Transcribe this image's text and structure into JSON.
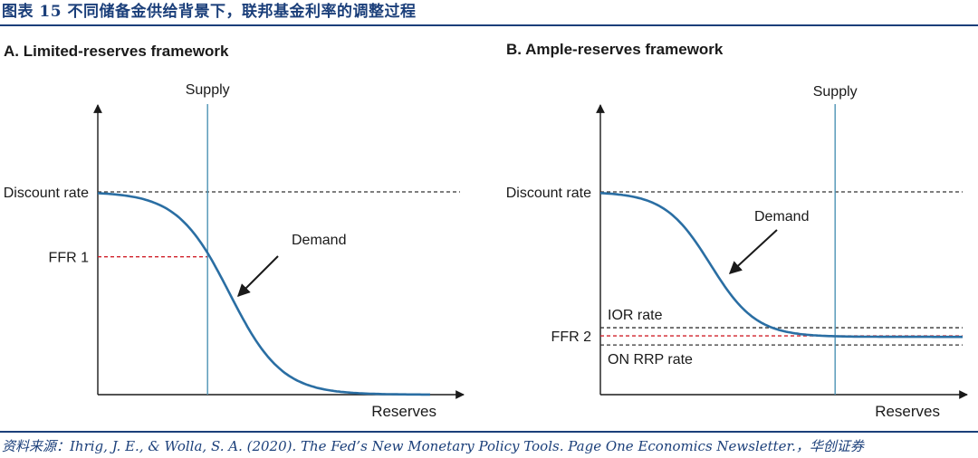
{
  "figure": {
    "title": "图表 15 不同储备金供给背景下，联邦基金利率的调整过程",
    "source": "资料来源：Ihrig, J. E., & Wolla, S. A. (2020). The Fed’s New Monetary Policy Tools. Page One Economics Newsletter.，华创证券",
    "rule_color": "#1b3f7a"
  },
  "chart_data": [
    {
      "type": "line",
      "title": "A. Limited-reserves framework",
      "xlabel": "Reserves",
      "ylabel": "",
      "supply_label": "Supply",
      "demand_label": "Demand",
      "rate_lines": [
        {
          "label": "Discount rate",
          "value": 1.0,
          "style": "dashed",
          "color": "#333333"
        },
        {
          "label": "FFR 1",
          "value": 0.68,
          "style": "dashed",
          "color": "#d0202a"
        }
      ],
      "supply_x": 0.3,
      "demand_curve": {
        "high": 1.0,
        "low": 0.0,
        "midpoint": 0.36,
        "steepness": 14
      },
      "xlim": [
        0,
        1
      ],
      "ylim": [
        0,
        1.02
      ],
      "grid": false,
      "colors": {
        "demand": "#2a6ea3",
        "supply": "#4d93b5",
        "axis": "#1a1a1a"
      }
    },
    {
      "type": "line",
      "title": "B. Ample-reserves framework",
      "xlabel": "Reserves",
      "ylabel": "",
      "supply_label": "Supply",
      "demand_label": "Demand",
      "rate_lines": [
        {
          "label": "Discount rate",
          "value": 1.0,
          "style": "dashed",
          "color": "#333333"
        },
        {
          "label": "IOR rate",
          "value": 0.33,
          "style": "dashed",
          "color": "#333333"
        },
        {
          "label": "FFR 2",
          "value": 0.29,
          "style": "dashed",
          "color": "#d0202a"
        },
        {
          "label": "ON RRP rate",
          "value": 0.245,
          "style": "dashed",
          "color": "#333333"
        }
      ],
      "supply_x": 0.64,
      "demand_curve": {
        "high": 1.0,
        "low": 0.285,
        "midpoint": 0.3,
        "steepness": 16
      },
      "xlim": [
        0,
        1
      ],
      "ylim": [
        0,
        1.02
      ],
      "grid": false,
      "colors": {
        "demand": "#2a6ea3",
        "supply": "#4d93b5",
        "axis": "#1a1a1a"
      }
    }
  ]
}
